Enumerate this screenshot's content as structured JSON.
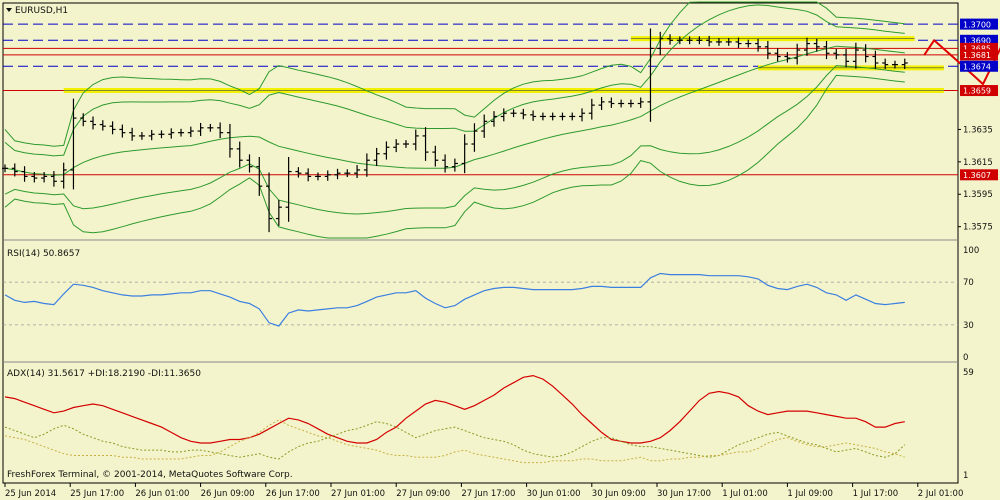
{
  "chart_data": [
    {
      "type": "line",
      "subtype": "ohlc-bars",
      "title": "EURUSD,H1",
      "ylim": [
        1.3568,
        1.3705
      ],
      "y_ticks": [
        "1.3575",
        "1.3595",
        "1.3615",
        "1.3635"
      ],
      "x_ticks": [
        "25 Jun 2014",
        "25 Jun 17:00",
        "26 Jun 01:00",
        "26 Jun 09:00",
        "26 Jun 17:00",
        "27 Jun 01:00",
        "27 Jun 09:00",
        "27 Jun 17:00",
        "30 Jun 01:00",
        "30 Jun 09:00",
        "30 Jun 17:00",
        "1 Jul 01:00",
        "1 Jul 09:00",
        "1 Jul 17:00",
        "2 Jul 01:00"
      ],
      "price_close": [
        1.3611,
        1.3609,
        1.3606,
        1.3605,
        1.3606,
        1.3603,
        1.361,
        1.3642,
        1.364,
        1.3638,
        1.3637,
        1.3635,
        1.3633,
        1.3631,
        1.3631,
        1.3632,
        1.3632,
        1.3633,
        1.3633,
        1.3634,
        1.3636,
        1.3636,
        1.3633,
        1.3623,
        1.3616,
        1.3612,
        1.36,
        1.358,
        1.3587,
        1.3609,
        1.3608,
        1.3606,
        1.3606,
        1.3607,
        1.3608,
        1.3608,
        1.361,
        1.3616,
        1.362,
        1.3624,
        1.3626,
        1.3626,
        1.3631,
        1.3621,
        1.3616,
        1.3612,
        1.3614,
        1.3626,
        1.3634,
        1.364,
        1.3643,
        1.3645,
        1.3645,
        1.3644,
        1.3643,
        1.3643,
        1.3643,
        1.3643,
        1.3643,
        1.3645,
        1.365,
        1.3652,
        1.3651,
        1.3651,
        1.3651,
        1.3652,
        1.3685,
        1.3691,
        1.369,
        1.369,
        1.369,
        1.369,
        1.3689,
        1.3689,
        1.3689,
        1.3688,
        1.3688,
        1.3686,
        1.3682,
        1.368,
        1.3679,
        1.3684,
        1.3688,
        1.3686,
        1.3682,
        1.3681,
        1.3677,
        1.3684,
        1.368,
        1.3676,
        1.3675,
        1.3675,
        1.3676
      ],
      "indicators": [
        "Bollinger Bands (upper/middle/lower)",
        "Bollinger Bands (wider)"
      ],
      "horizontal_levels": [
        {
          "price": 1.37,
          "label": "1.3700",
          "style": "dashed"
        },
        {
          "price": 1.369,
          "label": "1.3690",
          "style": "dashed"
        },
        {
          "price": 1.3685,
          "label": "1.3685",
          "style": "solid"
        },
        {
          "price": 1.3681,
          "label": "1.3681",
          "style": "solid"
        },
        {
          "price": 1.3674,
          "label": "1.3674",
          "style": "dashed"
        },
        {
          "price": 1.3659,
          "label": "1.3659",
          "style": "solid"
        },
        {
          "price": 1.3607,
          "label": "1.3607",
          "style": "solid"
        }
      ],
      "support_zones": [
        {
          "price": 1.3691,
          "from_index": 64,
          "to_index": 93
        },
        {
          "price": 1.3673,
          "from_index": 77,
          "to_index": 96
        },
        {
          "price": 1.3659,
          "from_index": 6,
          "to_index": 96
        }
      ],
      "forecast_path": [
        {
          "index": 94,
          "price": 1.3681
        },
        {
          "index": 95,
          "price": 1.369
        },
        {
          "index": 98,
          "price": 1.3674
        },
        {
          "index": 100,
          "price": 1.3663
        },
        {
          "index": 103,
          "price": 1.37
        }
      ]
    },
    {
      "type": "line",
      "title": "RSI(14) 50.8657",
      "ylim": [
        0,
        100
      ],
      "y_ticks": [
        "100",
        "70",
        "30",
        "0"
      ],
      "values": [
        58,
        53,
        51,
        52,
        50,
        49,
        59,
        68,
        67,
        65,
        62,
        60,
        58,
        57,
        57,
        58,
        58,
        59,
        60,
        60,
        62,
        62,
        59,
        56,
        52,
        50,
        45,
        32,
        29,
        41,
        44,
        43,
        44,
        45,
        46,
        46,
        48,
        52,
        56,
        58,
        60,
        60,
        62,
        55,
        50,
        46,
        48,
        54,
        58,
        62,
        64,
        65,
        65,
        64,
        63,
        63,
        63,
        63,
        63,
        64,
        66,
        66,
        65,
        65,
        65,
        65,
        74,
        78,
        77,
        77,
        77,
        77,
        76,
        76,
        76,
        76,
        75,
        73,
        67,
        64,
        63,
        66,
        68,
        65,
        60,
        58,
        53,
        58,
        54,
        50,
        49,
        50,
        51
      ]
    },
    {
      "type": "line",
      "title": "ADX(14) 31.5617 +DI:18.2190 -DI:11.3650",
      "ylim": [
        1,
        59
      ],
      "y_ticks": [
        "59",
        "1"
      ],
      "series": [
        {
          "name": "ADX",
          "values": [
            45,
            44,
            42,
            40,
            38,
            36,
            37,
            39,
            40,
            41,
            40,
            38,
            36,
            34,
            32,
            30,
            28,
            25,
            22,
            20,
            19,
            19,
            20,
            21,
            21,
            22,
            24,
            27,
            30,
            33,
            32,
            30,
            27,
            24,
            22,
            20,
            19,
            19,
            21,
            25,
            28,
            33,
            37,
            41,
            43,
            42,
            40,
            38,
            40,
            43,
            46,
            50,
            53,
            56,
            57,
            55,
            51,
            46,
            41,
            35,
            30,
            25,
            21,
            20,
            19,
            19,
            20,
            22,
            26,
            31,
            37,
            43,
            47,
            48,
            47,
            45,
            40,
            37,
            35,
            36,
            37,
            37,
            37,
            36,
            35,
            34,
            33,
            33,
            31,
            28,
            28,
            30,
            31
          ]
        },
        {
          "name": "+DI",
          "values": [
            28,
            26,
            24,
            22,
            24,
            27,
            29,
            27,
            24,
            22,
            20,
            19,
            17,
            16,
            15,
            15,
            15,
            14,
            14,
            15,
            15,
            14,
            13,
            12,
            11,
            12,
            13,
            11,
            10,
            14,
            17,
            19,
            20,
            22,
            24,
            26,
            27,
            29,
            31,
            30,
            28,
            25,
            22,
            24,
            26,
            27,
            28,
            26,
            24,
            22,
            21,
            20,
            18,
            15,
            13,
            12,
            11,
            12,
            14,
            17,
            20,
            22,
            22,
            20,
            18,
            17,
            17,
            16,
            15,
            14,
            13,
            12,
            11,
            12,
            15,
            18,
            20,
            22,
            24,
            25,
            23,
            21,
            19,
            18,
            16,
            14,
            15,
            16,
            14,
            12,
            11,
            13,
            18
          ]
        },
        {
          "name": "-DI",
          "values": [
            23,
            22,
            21,
            19,
            17,
            15,
            13,
            12,
            12,
            12,
            12,
            12,
            11,
            11,
            10,
            10,
            10,
            10,
            10,
            11,
            12,
            12,
            14,
            17,
            20,
            22,
            25,
            29,
            32,
            29,
            27,
            25,
            23,
            22,
            20,
            18,
            17,
            16,
            15,
            13,
            12,
            12,
            11,
            11,
            11,
            12,
            14,
            15,
            13,
            12,
            11,
            10,
            9,
            8,
            8,
            8,
            9,
            9,
            9,
            10,
            10,
            9,
            9,
            9,
            10,
            11,
            9,
            9,
            10,
            10,
            11,
            11,
            12,
            12,
            13,
            14,
            14,
            16,
            19,
            21,
            22,
            20,
            18,
            17,
            17,
            18,
            19,
            18,
            17,
            16,
            14,
            13,
            11
          ]
        }
      ]
    }
  ],
  "labels": {
    "footer": "FreshForex Terminal, © 2001-2014, MetaQuotes Software Corp."
  },
  "colors": {
    "background": "#f4f4cc",
    "bars": "#000000",
    "bollinger": "#2e9a2e",
    "level_red": "#d00000",
    "level_blue": "#0000c8",
    "support_yellow": "#f2f200",
    "forecast": "#e00000",
    "rsi": "#3b7fe0",
    "adx": "#d40000",
    "di_plus": "#8a9a20",
    "di_minus": "#c8b040"
  }
}
